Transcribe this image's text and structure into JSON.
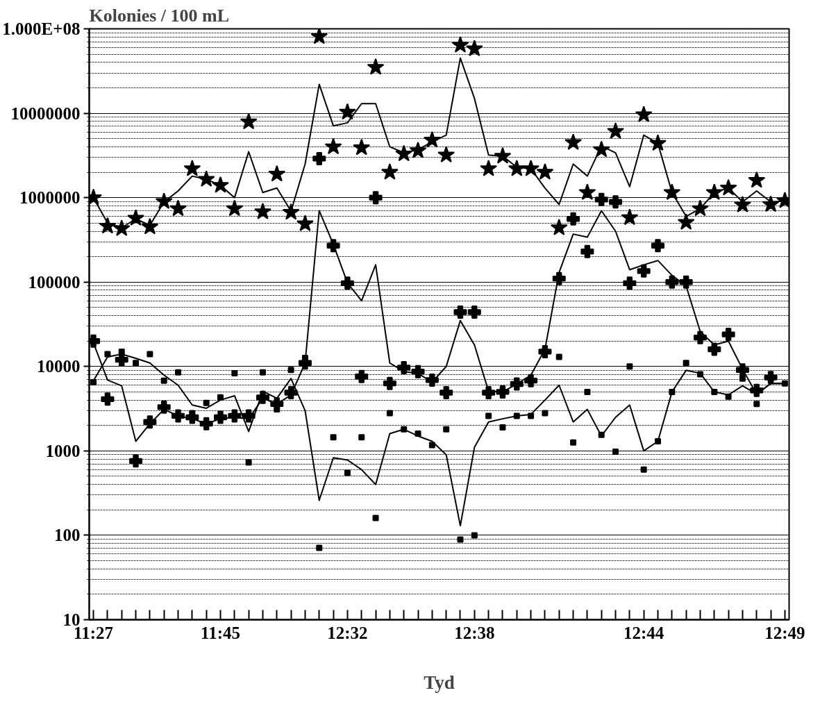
{
  "chart_data": {
    "type": "scatter",
    "ylabel": "Kolonies / 100 mL",
    "xlabel": "Tyd",
    "log": "y",
    "grid": "y",
    "ylim": [
      10,
      100000000
    ],
    "yticks": [
      10,
      100,
      1000,
      10000,
      100000,
      1000000,
      10000000,
      {
        "value": 100000000,
        "label": "1.000E+08"
      }
    ],
    "categories": [
      "11:27",
      null,
      null,
      null,
      null,
      null,
      null,
      null,
      null,
      "11:45",
      null,
      null,
      null,
      null,
      null,
      null,
      null,
      null,
      "12:32",
      null,
      null,
      null,
      null,
      null,
      null,
      null,
      null,
      "12:38",
      null,
      null,
      null,
      null,
      null,
      null,
      null,
      null,
      null,
      null,
      null,
      "12:44",
      null,
      null,
      null,
      null,
      null,
      null,
      null,
      null,
      null,
      "12:49"
    ],
    "series": [
      {
        "type": "line",
        "color": "#000000",
        "values": [
          1000000.0,
          500000.0,
          440000.0,
          560000.0,
          470000.0,
          890000.0,
          1200000.0,
          1800000.0,
          1650000.0,
          1400000.0,
          1000000.0,
          3500000.0,
          1150000.0,
          1300000.0,
          690000.0,
          2500000.0,
          22000000.0,
          7100000.0,
          7700000.0,
          13000000.0,
          13000000.0,
          4000000.0,
          3400000.0,
          3700000.0,
          4600000.0,
          5500000.0,
          45000000.0,
          15000000.0,
          3200000.0,
          3100000.0,
          2300000.0,
          2200000.0,
          1300000.0,
          830000.0,
          2500000.0,
          1800000.0,
          4100000.0,
          3400000.0,
          1350000.0,
          5500000.0,
          4400000.0,
          1150000.0,
          600000.0,
          740000.0,
          1150000.0,
          1300000.0,
          890000.0,
          1200000.0,
          890000.0,
          910000.0
        ]
      },
      {
        "type": "line",
        "color": "#000000",
        "values": [
          19000.0,
          6900.0,
          5900.0,
          1300.0,
          2100.0,
          3100.0,
          2600.0,
          2400.0,
          2100.0,
          2400.0,
          2500.0,
          2400.0,
          4200.0,
          3600.0,
          4600.0,
          11000.0,
          700000.0,
          280000.0,
          98000.0,
          60000.0,
          160000.0,
          11000.0,
          8700.0,
          8300.0,
          6500.0,
          10000.0,
          35000.0,
          18000.0,
          5100.0,
          5000.0,
          6200.0,
          7900.0,
          16000.0,
          130000.0,
          370000.0,
          340000.0,
          700000.0,
          400000.0,
          140000.0,
          160000.0,
          180000.0,
          120000.0,
          90000.0,
          26000.0,
          18000.0,
          20000.0,
          9300.0,
          4700.0,
          6300.0,
          6300.0
        ]
      },
      {
        "type": "line",
        "color": "#000000",
        "values": [
          6800.0,
          13000.0,
          14000.0,
          12500.0,
          11000.0,
          7900.0,
          6000.0,
          3500.0,
          3200.0,
          4000.0,
          4500.0,
          1700.0,
          5100.0,
          4200.0,
          7200.0,
          3000.0,
          260,
          830,
          780,
          600,
          400,
          1600.0,
          1800.0,
          1500.0,
          1300.0,
          900,
          130,
          1100.0,
          2200.0,
          2400.0,
          2600.0,
          2700.0,
          4000.0,
          6000.0,
          2200.0,
          3100.0,
          1500.0,
          2500.0,
          3500.0,
          1000.0,
          1300.0,
          5000.0,
          9000.0,
          8300.0,
          5000.0,
          4600.0,
          5900.0,
          4700.0,
          6300.0,
          6300.0
        ]
      },
      {
        "marker": "star",
        "color": "#000000",
        "values": [
          1000000.0,
          460000.0,
          430000.0,
          570000.0,
          450000.0,
          900000.0,
          740000.0,
          2200000.0,
          1650000.0,
          1400000.0,
          740000.0,
          7900000.0,
          680000.0,
          1900000.0,
          670000.0,
          490000.0,
          81000000.0,
          4000000.0,
          10300000.0,
          3900000.0,
          35000000.0,
          2000000.0,
          3300000.0,
          3600000.0,
          4800000.0,
          3200000.0,
          64000000.0,
          58000000.0,
          2200000.0,
          3100000.0,
          2200000.0,
          2200000.0,
          2000000.0,
          440000.0,
          4500000.0,
          1150000.0,
          3700000.0,
          6100000.0,
          580000.0,
          9600000.0,
          4400000.0,
          1150000.0,
          510000.0,
          740000.0,
          1150000.0,
          1300000.0,
          820000.0,
          1600000.0,
          830000.0,
          920000.0
        ]
      },
      {
        "marker": "cross",
        "color": "#000000",
        "values": [
          20000.0,
          4100.0,
          12000.0,
          760,
          2200.0,
          3300.0,
          2600.0,
          2500.0,
          2100.0,
          2500.0,
          2600.0,
          2600.0,
          4300.0,
          3600.0,
          4900.0,
          11000.0,
          2900000.0,
          270000.0,
          97000.0,
          7600.0,
          1000000.0,
          6300.0,
          9700.0,
          8700.0,
          6900.0,
          4900.0,
          44000.0,
          44000.0,
          4900.0,
          5000.0,
          6200.0,
          6800.0,
          15000.0,
          110000.0,
          560000.0,
          230000.0,
          950000.0,
          890000.0,
          97000.0,
          135000.0,
          270000.0,
          100000.0,
          100000.0,
          22000.0,
          16000.0,
          24000.0,
          9100.0,
          5200.0,
          7400.0,
          null
        ]
      },
      {
        "marker": "square",
        "color": "#000000",
        "values": [
          6500.0,
          14000.0,
          15000.0,
          11000.0,
          14000.0,
          6800.0,
          8500.0,
          2800.0,
          3700.0,
          4300.0,
          8300.0,
          730,
          8500.0,
          3100.0,
          9100.0,
          12600.0,
          71,
          1450.0,
          550,
          1450.0,
          160,
          2800.0,
          1800.0,
          1600.0,
          1170.0,
          1800.0,
          89,
          100,
          2600.0,
          1900.0,
          2600.0,
          2600.0,
          2800.0,
          13000.0,
          1260.0,
          5000.0,
          1550.0,
          980,
          10000.0,
          600,
          1300.0,
          5000.0,
          11000.0,
          8100.0,
          5000.0,
          4400.0,
          7200.0,
          3600.0,
          7100.0,
          6300.0
        ]
      }
    ]
  }
}
